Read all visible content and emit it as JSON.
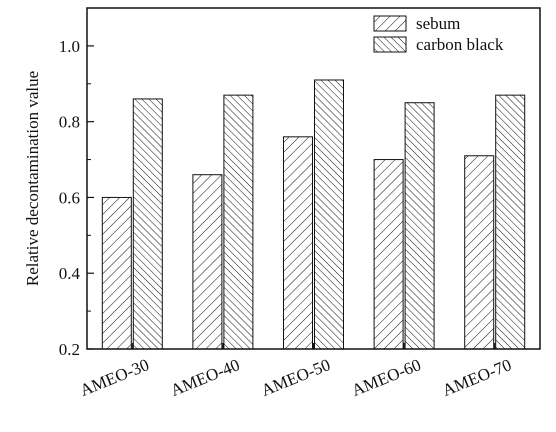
{
  "chart_data": {
    "type": "bar",
    "categories": [
      "AMEO-30",
      "AMEO-40",
      "AMEO-50",
      "AMEO-60",
      "AMEO-70"
    ],
    "series": [
      {
        "name": "sebum",
        "values": [
          0.6,
          0.66,
          0.76,
          0.7,
          0.71
        ],
        "hatch": "forward-diagonal"
      },
      {
        "name": "carbon black",
        "values": [
          0.86,
          0.87,
          0.91,
          0.85,
          0.87
        ],
        "hatch": "backward-diagonal"
      }
    ],
    "title": "",
    "xlabel": "",
    "ylabel": "Relative decontamination value",
    "ylim": [
      0.2,
      1.1
    ],
    "yticks": [
      0.2,
      0.4,
      0.6,
      0.8,
      1.0
    ],
    "ytick_labels": [
      "0.2",
      "0.4",
      "0.6",
      "0.8",
      "1.0"
    ],
    "grid": false,
    "legend_position": "top-right",
    "colors": {
      "stroke": "#111111",
      "background": "#ffffff"
    }
  }
}
